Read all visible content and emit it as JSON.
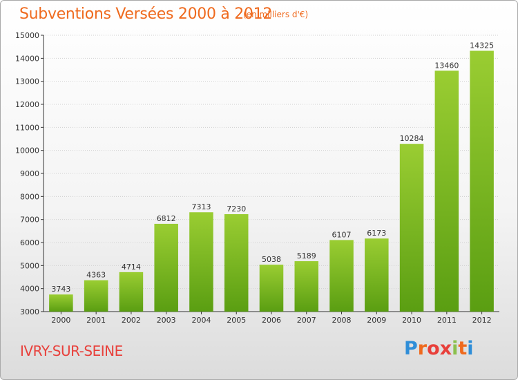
{
  "header": {
    "title": "Subventions Versées 2000 à 2012",
    "subtitle": "(en milliers d'€)"
  },
  "footer": {
    "commune": "IVRY-SUR-SEINE",
    "logo": {
      "letters": [
        "P",
        "r",
        "o",
        "x",
        "i",
        "t",
        "i"
      ],
      "colors": [
        "#2f8ed8",
        "#ef6a1e",
        "#e8403b",
        "#e8403b",
        "#8bc04d",
        "#ef6a1e",
        "#2f8ed8"
      ]
    }
  },
  "colors": {
    "accent": "#ef6a1e",
    "bar_top": "#9acd32",
    "bar_bottom": "#5a9e12"
  },
  "chart_data": {
    "type": "bar",
    "title": "Subventions Versées 2000 à 2012",
    "subtitle": "(en milliers d'€)",
    "categories": [
      "2000",
      "2001",
      "2002",
      "2003",
      "2004",
      "2005",
      "2006",
      "2007",
      "2008",
      "2009",
      "2010",
      "2011",
      "2012"
    ],
    "values": [
      3743,
      4363,
      4714,
      6812,
      7313,
      7230,
      5038,
      5189,
      6107,
      6173,
      10284,
      13460,
      14325
    ],
    "ylim": [
      3000,
      15000
    ],
    "yticks": [
      3000,
      4000,
      5000,
      6000,
      7000,
      8000,
      9000,
      10000,
      11000,
      12000,
      13000,
      14000,
      15000
    ],
    "grid": true,
    "legend": "none"
  }
}
